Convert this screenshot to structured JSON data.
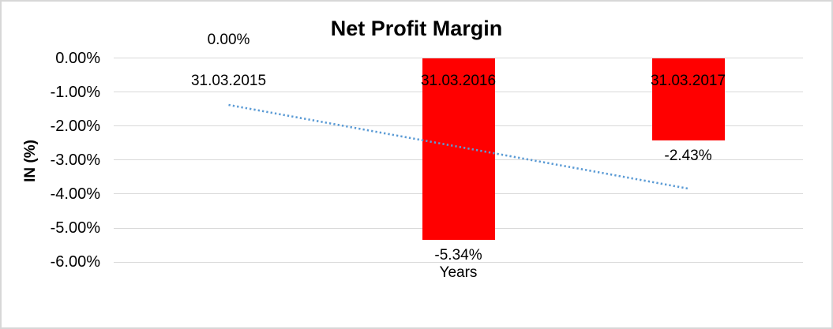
{
  "chart_data": {
    "type": "bar",
    "title": "Net Profit Margin",
    "xlabel": "Years",
    "ylabel": "IN (%)",
    "categories": [
      "31.03.2015",
      "31.03.2016",
      "31.03.2017"
    ],
    "series": [
      {
        "name": "Net Profit Margin",
        "values": [
          0,
          -5.34,
          -2.43
        ],
        "value_labels": [
          "0.00%",
          "-5.34%",
          "-2.43%"
        ]
      }
    ],
    "yticks": [
      {
        "value": 0,
        "label": "0.00%"
      },
      {
        "value": -1,
        "label": "-1.00%"
      },
      {
        "value": -2,
        "label": "-2.00%"
      },
      {
        "value": -3,
        "label": "-3.00%"
      },
      {
        "value": -4,
        "label": "-4.00%"
      },
      {
        "value": -5,
        "label": "-5.00%"
      },
      {
        "value": -6,
        "label": "-6.00%"
      }
    ],
    "ylim": [
      -6.9,
      0
    ],
    "grid": true,
    "legend_position": "none",
    "trendline": {
      "type": "linear",
      "style": "dotted",
      "start_value": -1.38,
      "end_value": -3.84
    },
    "colors": {
      "bar": "#ff0000",
      "trendline": "#5b9bd5",
      "gridline": "#d9d9d9",
      "text": "#000000",
      "border": "#d7d7d7"
    }
  }
}
